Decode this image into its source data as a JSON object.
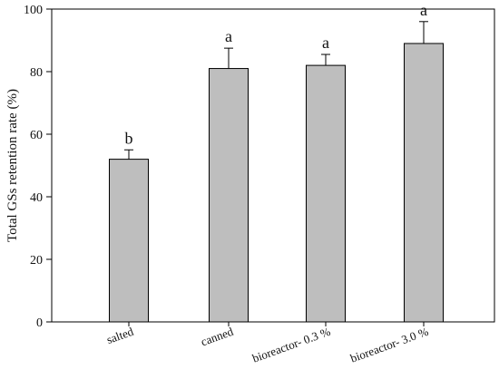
{
  "chart_data": {
    "type": "bar",
    "categories": [
      "salted",
      "canned",
      "bioreactor- 0.3 %",
      "bioreactor- 3.0 %"
    ],
    "values": [
      52,
      81,
      82,
      89
    ],
    "errors": [
      3,
      6.5,
      3.5,
      7
    ],
    "significance_letters": [
      "b",
      "a",
      "a",
      "a"
    ],
    "title": "",
    "xlabel": "",
    "ylabel": "Total GSs retention rate (%)",
    "ylim": [
      0,
      100
    ],
    "yticks": [
      0,
      20,
      40,
      60,
      80,
      100
    ],
    "grid": false,
    "colors": {
      "bar_fill": "#bebebe",
      "bar_stroke": "#000000",
      "axis": "#000000"
    }
  }
}
